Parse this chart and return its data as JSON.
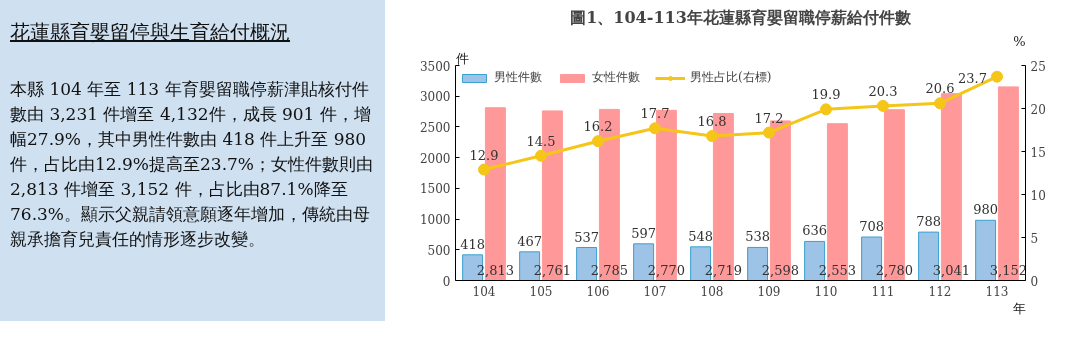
{
  "chart_data": [
    {
      "type": "other",
      "title": "花蓮縣育嬰留停與生育給付概況",
      "annotations": [
        "本縣 104 年至 113 年育嬰留職停薪津貼核付件數由 3,231 件增至 4,132件，成長 901 件，增幅27.9%，其中男性件數由 418 件上升至 980 件，占比由12.9%提高至23.7%；女性件數則由2,813 件增至 3,152 件，占比由87.1%降至76.3%。顯示父親請領意願逐年增加，傳統由母親承擔育兒責任的情形逐步改變。"
      ]
    },
    {
      "type": "bar",
      "title": "圖1、104-113年花蓮縣育嬰留職停薪給付件數",
      "xlabel": "年",
      "ylabel": "件",
      "y2label": "%",
      "categories": [
        "104",
        "105",
        "106",
        "107",
        "108",
        "109",
        "110",
        "111",
        "112",
        "113"
      ],
      "series": [
        {
          "name": "男性件數",
          "color": "#9dc3e6",
          "values": [
            418,
            467,
            537,
            597,
            548,
            538,
            636,
            708,
            788,
            980
          ],
          "value_labels": [
            "418",
            "467",
            "537",
            "597",
            "548",
            "538",
            "636",
            "708",
            "788",
            "980"
          ]
        },
        {
          "name": "女性件數",
          "color": "#ff9999",
          "values": [
            2813,
            2761,
            2785,
            2770,
            2719,
            2598,
            2553,
            2780,
            3041,
            3152
          ],
          "value_labels": [
            "2,813",
            "2,761",
            "2,785",
            "2,770",
            "2,719",
            "2,598",
            "2,553",
            "2,780",
            "3,041",
            "3,152"
          ]
        },
        {
          "name": "男性占比(右標)",
          "type": "line",
          "axis": "y2",
          "color": "#f5c518",
          "marker": "circle",
          "values": [
            12.9,
            14.5,
            16.2,
            17.7,
            16.8,
            17.2,
            19.9,
            20.3,
            20.6,
            23.7
          ],
          "value_labels": [
            "12.9",
            "14.5",
            "16.2",
            "17.7",
            "16.8",
            "17.2",
            "19.9",
            "20.3",
            "20.6",
            "23.7"
          ]
        }
      ],
      "ylim": [
        0,
        3500
      ],
      "yticks": [
        0,
        500,
        1000,
        1500,
        2000,
        2500,
        3000,
        3500
      ],
      "y2lim": [
        0,
        25
      ],
      "y2ticks": [
        0,
        5,
        10,
        15,
        20,
        25
      ],
      "grid": false,
      "legend": "top"
    }
  ]
}
